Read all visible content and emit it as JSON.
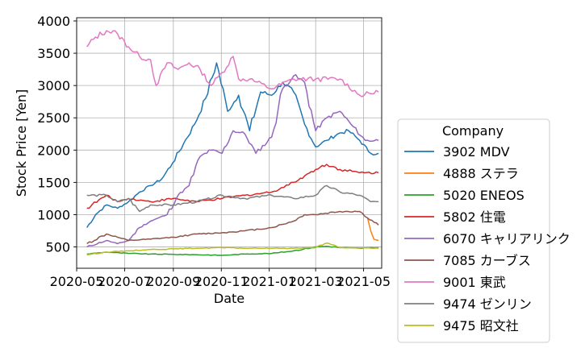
{
  "chart_data": {
    "type": "line",
    "xlabel": "Date",
    "ylabel": "Stock Price [Yen]",
    "xlim": [
      "2020-05-01",
      "2021-05-24"
    ],
    "ylim": [
      170,
      4050
    ],
    "grid": true,
    "legend": {
      "title": "Company",
      "placement": "right"
    },
    "x_ticks": [
      {
        "date": "2020-05-01",
        "label": "2020-05"
      },
      {
        "date": "2020-07-01",
        "label": "2020-07"
      },
      {
        "date": "2020-09-01",
        "label": "2020-09"
      },
      {
        "date": "2020-11-01",
        "label": "2020-11"
      },
      {
        "date": "2021-01-01",
        "label": "2021-01"
      },
      {
        "date": "2021-03-01",
        "label": "2021-03"
      },
      {
        "date": "2021-05-01",
        "label": "2021-05"
      }
    ],
    "y_ticks": [
      500,
      1000,
      1500,
      2000,
      2500,
      3000,
      3500,
      4000
    ],
    "series": [
      {
        "name": "3902 MDV",
        "color": "#1f77b4",
        "points": [
          [
            "2020-05-14",
            800
          ],
          [
            "2020-05-25",
            1000
          ],
          [
            "2020-06-08",
            1150
          ],
          [
            "2020-06-22",
            1100
          ],
          [
            "2020-07-06",
            1200
          ],
          [
            "2020-07-20",
            1350
          ],
          [
            "2020-08-03",
            1450
          ],
          [
            "2020-08-17",
            1550
          ],
          [
            "2020-08-31",
            1800
          ],
          [
            "2020-09-14",
            2100
          ],
          [
            "2020-09-28",
            2400
          ],
          [
            "2020-10-12",
            2800
          ],
          [
            "2020-10-26",
            3350
          ],
          [
            "2020-11-09",
            2600
          ],
          [
            "2020-11-23",
            2850
          ],
          [
            "2020-12-07",
            2300
          ],
          [
            "2020-12-21",
            2900
          ],
          [
            "2021-01-04",
            2850
          ],
          [
            "2021-01-18",
            3050
          ],
          [
            "2021-02-01",
            2900
          ],
          [
            "2021-02-15",
            2400
          ],
          [
            "2021-03-01",
            2050
          ],
          [
            "2021-03-15",
            2150
          ],
          [
            "2021-03-29",
            2250
          ],
          [
            "2021-04-12",
            2300
          ],
          [
            "2021-04-26",
            2150
          ],
          [
            "2021-05-10",
            1950
          ],
          [
            "2021-05-20",
            1950
          ]
        ]
      },
      {
        "name": "4888 ステラ",
        "color": "#ff7f0e",
        "points": [
          [
            "2021-05-06",
            950
          ],
          [
            "2021-05-10",
            750
          ],
          [
            "2021-05-14",
            620
          ],
          [
            "2021-05-20",
            600
          ]
        ]
      },
      {
        "name": "5020 ENEOS",
        "color": "#2ca02c",
        "points": [
          [
            "2020-05-14",
            390
          ],
          [
            "2020-06-08",
            420
          ],
          [
            "2020-07-06",
            400
          ],
          [
            "2020-08-03",
            390
          ],
          [
            "2020-09-01",
            385
          ],
          [
            "2020-10-01",
            380
          ],
          [
            "2020-11-02",
            370
          ],
          [
            "2020-12-01",
            390
          ],
          [
            "2021-01-04",
            400
          ],
          [
            "2021-02-01",
            440
          ],
          [
            "2021-03-01",
            500
          ],
          [
            "2021-03-15",
            510
          ],
          [
            "2021-04-01",
            490
          ],
          [
            "2021-04-26",
            480
          ],
          [
            "2021-05-20",
            490
          ]
        ]
      },
      {
        "name": "5802 住電",
        "color": "#d62728",
        "points": [
          [
            "2020-05-14",
            1100
          ],
          [
            "2020-06-08",
            1300
          ],
          [
            "2020-06-22",
            1200
          ],
          [
            "2020-07-06",
            1250
          ],
          [
            "2020-08-03",
            1200
          ],
          [
            "2020-09-01",
            1250
          ],
          [
            "2020-10-01",
            1200
          ],
          [
            "2020-11-02",
            1250
          ],
          [
            "2020-12-01",
            1300
          ],
          [
            "2021-01-04",
            1350
          ],
          [
            "2021-02-01",
            1500
          ],
          [
            "2021-02-15",
            1600
          ],
          [
            "2021-03-01",
            1700
          ],
          [
            "2021-03-15",
            1780
          ],
          [
            "2021-04-01",
            1700
          ],
          [
            "2021-04-26",
            1650
          ],
          [
            "2021-05-20",
            1650
          ]
        ]
      },
      {
        "name": "6070 キャリアリンク",
        "color": "#9467bd",
        "points": [
          [
            "2020-05-14",
            500
          ],
          [
            "2020-06-08",
            600
          ],
          [
            "2020-06-22",
            550
          ],
          [
            "2020-07-06",
            600
          ],
          [
            "2020-07-20",
            800
          ],
          [
            "2020-08-03",
            900
          ],
          [
            "2020-08-24",
            1000
          ],
          [
            "2020-09-07",
            1300
          ],
          [
            "2020-09-21",
            1450
          ],
          [
            "2020-10-05",
            1900
          ],
          [
            "2020-10-19",
            2000
          ],
          [
            "2020-11-02",
            1950
          ],
          [
            "2020-11-16",
            2300
          ],
          [
            "2020-12-01",
            2250
          ],
          [
            "2020-12-15",
            1950
          ],
          [
            "2021-01-04",
            2200
          ],
          [
            "2021-01-18",
            2950
          ],
          [
            "2021-02-01",
            3150
          ],
          [
            "2021-02-15",
            3050
          ],
          [
            "2021-03-01",
            2300
          ],
          [
            "2021-03-15",
            2500
          ],
          [
            "2021-04-01",
            2600
          ],
          [
            "2021-04-15",
            2400
          ],
          [
            "2021-05-03",
            2150
          ],
          [
            "2021-05-20",
            2150
          ]
        ]
      },
      {
        "name": "7085 カーブス",
        "color": "#8c564b",
        "points": [
          [
            "2020-05-14",
            550
          ],
          [
            "2020-06-08",
            700
          ],
          [
            "2020-06-22",
            650
          ],
          [
            "2020-07-06",
            600
          ],
          [
            "2020-08-03",
            620
          ],
          [
            "2020-09-01",
            650
          ],
          [
            "2020-10-01",
            700
          ],
          [
            "2020-11-02",
            720
          ],
          [
            "2020-12-01",
            750
          ],
          [
            "2021-01-04",
            800
          ],
          [
            "2021-02-01",
            900
          ],
          [
            "2021-02-15",
            1000
          ],
          [
            "2021-03-01",
            1000
          ],
          [
            "2021-04-01",
            1050
          ],
          [
            "2021-04-26",
            1050
          ],
          [
            "2021-05-06",
            950
          ],
          [
            "2021-05-20",
            840
          ]
        ]
      },
      {
        "name": "9001 東武",
        "color": "#e377c2",
        "points": [
          [
            "2020-05-14",
            3600
          ],
          [
            "2020-05-25",
            3750
          ],
          [
            "2020-06-08",
            3850
          ],
          [
            "2020-06-22",
            3800
          ],
          [
            "2020-07-06",
            3600
          ],
          [
            "2020-07-20",
            3450
          ],
          [
            "2020-08-03",
            3400
          ],
          [
            "2020-08-10",
            3000
          ],
          [
            "2020-08-24",
            3350
          ],
          [
            "2020-09-07",
            3250
          ],
          [
            "2020-09-21",
            3350
          ],
          [
            "2020-10-05",
            3250
          ],
          [
            "2020-10-19",
            3000
          ],
          [
            "2020-11-02",
            3200
          ],
          [
            "2020-11-16",
            3450
          ],
          [
            "2020-11-23",
            3100
          ],
          [
            "2020-12-07",
            3100
          ],
          [
            "2021-01-04",
            2950
          ],
          [
            "2021-02-01",
            3100
          ],
          [
            "2021-03-01",
            3100
          ],
          [
            "2021-04-01",
            3100
          ],
          [
            "2021-04-26",
            2850
          ],
          [
            "2021-05-20",
            2900
          ]
        ]
      },
      {
        "name": "9474 ゼンリン",
        "color": "#7f7f7f",
        "points": [
          [
            "2020-05-14",
            1300
          ],
          [
            "2020-06-08",
            1300
          ],
          [
            "2020-06-22",
            1200
          ],
          [
            "2020-07-06",
            1250
          ],
          [
            "2020-07-20",
            1050
          ],
          [
            "2020-08-03",
            1150
          ],
          [
            "2020-09-01",
            1150
          ],
          [
            "2020-10-01",
            1200
          ],
          [
            "2020-11-02",
            1300
          ],
          [
            "2020-12-01",
            1250
          ],
          [
            "2021-01-04",
            1300
          ],
          [
            "2021-02-01",
            1250
          ],
          [
            "2021-03-01",
            1300
          ],
          [
            "2021-03-15",
            1450
          ],
          [
            "2021-04-01",
            1350
          ],
          [
            "2021-04-26",
            1300
          ],
          [
            "2021-05-10",
            1200
          ],
          [
            "2021-05-20",
            1200
          ]
        ]
      },
      {
        "name": "9475 昭文社",
        "color": "#bcbd22",
        "points": [
          [
            "2020-05-14",
            380
          ],
          [
            "2020-06-08",
            420
          ],
          [
            "2020-07-06",
            440
          ],
          [
            "2020-08-03",
            460
          ],
          [
            "2020-09-01",
            470
          ],
          [
            "2020-10-01",
            480
          ],
          [
            "2020-11-02",
            490
          ],
          [
            "2020-12-01",
            480
          ],
          [
            "2021-01-04",
            480
          ],
          [
            "2021-02-01",
            480
          ],
          [
            "2021-03-01",
            490
          ],
          [
            "2021-03-15",
            560
          ],
          [
            "2021-04-01",
            490
          ],
          [
            "2021-05-20",
            480
          ]
        ]
      }
    ]
  }
}
